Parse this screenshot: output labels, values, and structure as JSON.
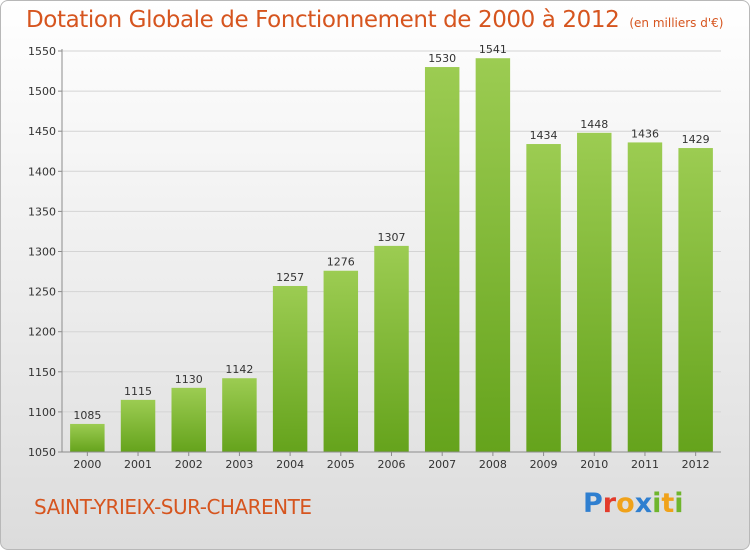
{
  "header": {
    "title": "Dotation Globale de Fonctionnement de 2000 à 2012",
    "subtitle": "(en milliers d'€)"
  },
  "footer": {
    "commune": "SAINT-YRIEIX-SUR-CHARENTE",
    "logo_letters": [
      {
        "char": "P",
        "color": "#2f7fd0"
      },
      {
        "char": "r",
        "color": "#e33b2b"
      },
      {
        "char": "o",
        "color": "#f0a21a"
      },
      {
        "char": "x",
        "color": "#2f7fd0"
      },
      {
        "char": "i",
        "color": "#6fb52c"
      },
      {
        "char": "t",
        "color": "#f0a21a"
      },
      {
        "char": "i",
        "color": "#6fb52c"
      }
    ]
  },
  "chart_data": {
    "type": "bar",
    "title": "Dotation Globale de Fonctionnement de 2000 à 2012",
    "subtitle": "(en milliers d'€)",
    "categories": [
      "2000",
      "2001",
      "2002",
      "2003",
      "2004",
      "2005",
      "2006",
      "2007",
      "2008",
      "2009",
      "2010",
      "2011",
      "2012"
    ],
    "values": [
      1085,
      1115,
      1130,
      1142,
      1257,
      1276,
      1307,
      1530,
      1541,
      1434,
      1448,
      1436,
      1429
    ],
    "ylim": [
      1050,
      1550
    ],
    "yticks": [
      1050,
      1100,
      1150,
      1200,
      1250,
      1300,
      1350,
      1400,
      1450,
      1500,
      1550
    ],
    "grid": true,
    "bar_color_top": "#9ccc52",
    "bar_color_bottom": "#65a31c",
    "axis_text_color": "#333333"
  }
}
